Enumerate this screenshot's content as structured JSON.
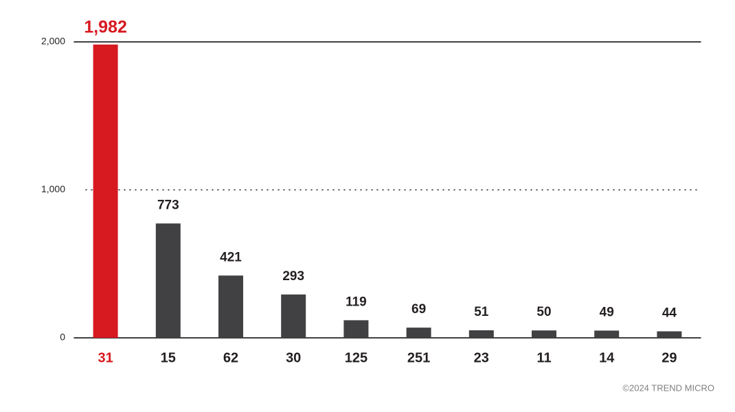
{
  "chart_data": {
    "type": "bar",
    "categories": [
      "31",
      "15",
      "62",
      "30",
      "125",
      "251",
      "23",
      "11",
      "14",
      "29"
    ],
    "values": [
      1982,
      773,
      421,
      293,
      119,
      69,
      51,
      50,
      49,
      44
    ],
    "value_labels": [
      "1,982",
      "773",
      "421",
      "293",
      "119",
      "69",
      "51",
      "50",
      "49",
      "44"
    ],
    "colors": [
      "#d71920",
      "#414042",
      "#414042",
      "#414042",
      "#414042",
      "#414042",
      "#414042",
      "#414042",
      "#414042",
      "#414042"
    ],
    "ylim": [
      0,
      2000
    ],
    "yticks": [
      0,
      {
        "value": 1000,
        "label": "1,000"
      },
      {
        "value": 2000,
        "label": "2,000"
      }
    ],
    "grid": true,
    "credit": "©2024 TREND MICRO"
  }
}
